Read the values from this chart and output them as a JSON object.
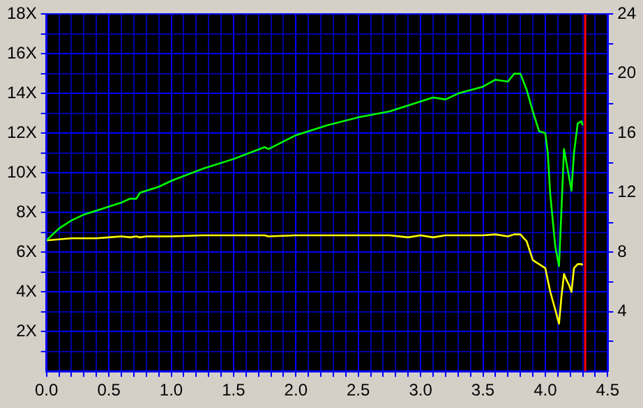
{
  "chart_data": {
    "type": "line",
    "x": [
      0,
      0.1,
      0.2,
      0.3,
      0.4,
      0.5,
      0.6,
      0.67,
      0.72,
      0.75,
      0.8,
      0.9,
      1.0,
      1.25,
      1.5,
      1.75,
      1.78,
      2.0,
      2.25,
      2.5,
      2.75,
      2.9,
      3.0,
      3.1,
      3.2,
      3.3,
      3.5,
      3.6,
      3.7,
      3.75,
      3.8,
      3.85,
      3.9,
      3.95,
      4.0,
      4.02,
      4.04,
      4.08,
      4.11,
      4.13,
      4.15,
      4.17,
      4.19,
      4.21,
      4.23,
      4.26,
      4.29,
      4.3
    ],
    "series": [
      {
        "name": null,
        "color": "#00ff00",
        "values": [
          6.6,
          7.2,
          7.6,
          7.9,
          8.1,
          8.3,
          8.5,
          8.7,
          8.7,
          9.0,
          9.1,
          9.3,
          9.6,
          10.2,
          10.7,
          11.3,
          11.2,
          11.9,
          12.4,
          12.8,
          13.1,
          13.4,
          13.6,
          13.8,
          13.7,
          14.0,
          14.35,
          14.7,
          14.6,
          15.0,
          15.0,
          14.2,
          13.1,
          12.1,
          12.0,
          11.0,
          8.9,
          6.3,
          5.3,
          8.2,
          11.2,
          10.5,
          9.8,
          9.1,
          11.0,
          12.5,
          12.6,
          12.4
        ]
      },
      {
        "name": null,
        "color": "#ffff00",
        "values": [
          6.6,
          6.65,
          6.7,
          6.7,
          6.7,
          6.75,
          6.8,
          6.75,
          6.8,
          6.75,
          6.8,
          6.8,
          6.8,
          6.85,
          6.85,
          6.85,
          6.8,
          6.85,
          6.85,
          6.85,
          6.85,
          6.75,
          6.85,
          6.75,
          6.85,
          6.85,
          6.85,
          6.9,
          6.8,
          6.9,
          6.9,
          6.56,
          5.6,
          5.4,
          5.2,
          4.6,
          4.0,
          3.1,
          2.4,
          3.8,
          4.9,
          4.6,
          4.35,
          4.0,
          5.2,
          5.4,
          5.4,
          5.35
        ]
      }
    ],
    "xlim": [
      0,
      4.5
    ],
    "xticks": [
      {
        "value": 0,
        "label": "0.0"
      },
      {
        "value": 0.1,
        "label": null
      },
      {
        "value": 0.2,
        "label": null
      },
      {
        "value": 0.3,
        "label": null
      },
      {
        "value": 0.4,
        "label": null
      },
      {
        "value": 0.5,
        "label": "0.5"
      },
      {
        "value": 0.6,
        "label": null
      },
      {
        "value": 0.7,
        "label": null
      },
      {
        "value": 0.8,
        "label": null
      },
      {
        "value": 0.9,
        "label": null
      },
      {
        "value": 1,
        "label": "1.0"
      },
      {
        "value": 1.1,
        "label": null
      },
      {
        "value": 1.2,
        "label": null
      },
      {
        "value": 1.3,
        "label": null
      },
      {
        "value": 1.4,
        "label": null
      },
      {
        "value": 1.5,
        "label": "1.5"
      },
      {
        "value": 1.6,
        "label": null
      },
      {
        "value": 1.7,
        "label": null
      },
      {
        "value": 1.8,
        "label": null
      },
      {
        "value": 1.9,
        "label": null
      },
      {
        "value": 2,
        "label": "2.0"
      },
      {
        "value": 2.1,
        "label": null
      },
      {
        "value": 2.2,
        "label": null
      },
      {
        "value": 2.3,
        "label": null
      },
      {
        "value": 2.4,
        "label": null
      },
      {
        "value": 2.5,
        "label": "2.5"
      },
      {
        "value": 2.6,
        "label": null
      },
      {
        "value": 2.7,
        "label": null
      },
      {
        "value": 2.8,
        "label": null
      },
      {
        "value": 2.9,
        "label": null
      },
      {
        "value": 3,
        "label": "3.0"
      },
      {
        "value": 3.1,
        "label": null
      },
      {
        "value": 3.2,
        "label": null
      },
      {
        "value": 3.3,
        "label": null
      },
      {
        "value": 3.4,
        "label": null
      },
      {
        "value": 3.5,
        "label": "3.5"
      },
      {
        "value": 3.6,
        "label": null
      },
      {
        "value": 3.7,
        "label": null
      },
      {
        "value": 3.8,
        "label": null
      },
      {
        "value": 3.9,
        "label": null
      },
      {
        "value": 4,
        "label": "4.0"
      },
      {
        "value": 4.1,
        "label": null
      },
      {
        "value": 4.2,
        "label": null
      },
      {
        "value": 4.3,
        "label": null
      },
      {
        "value": 4.4,
        "label": null
      },
      {
        "value": 4.5,
        "label": "4.5"
      }
    ],
    "ylim": [
      0,
      18
    ],
    "yticks": [
      {
        "value": 1,
        "label": null
      },
      {
        "value": 2,
        "label": "2X"
      },
      {
        "value": 3,
        "label": null
      },
      {
        "value": 4,
        "label": "4X"
      },
      {
        "value": 5,
        "label": null
      },
      {
        "value": 6,
        "label": "6X"
      },
      {
        "value": 7,
        "label": null
      },
      {
        "value": 8,
        "label": "8X"
      },
      {
        "value": 9,
        "label": null
      },
      {
        "value": 10,
        "label": "10X"
      },
      {
        "value": 11,
        "label": null
      },
      {
        "value": 12,
        "label": "12X"
      },
      {
        "value": 13,
        "label": null
      },
      {
        "value": 14,
        "label": "14X"
      },
      {
        "value": 15,
        "label": null
      },
      {
        "value": 16,
        "label": "16X"
      },
      {
        "value": 17,
        "label": null
      },
      {
        "value": 18,
        "label": "18X"
      }
    ],
    "y2lim": [
      0,
      24
    ],
    "y2ticks": [
      {
        "value": 2,
        "label": null
      },
      4,
      {
        "value": 6,
        "label": null
      },
      8,
      {
        "value": 10,
        "label": null
      },
      12,
      {
        "value": 14,
        "label": null
      },
      16,
      {
        "value": 18,
        "label": null
      },
      20,
      {
        "value": 22,
        "label": null
      },
      24
    ],
    "ref_lines": [
      {
        "axis": "x",
        "value": 4.32,
        "color": "#ff0000"
      }
    ],
    "grid": true,
    "marker": "none",
    "line_style": "solid"
  }
}
